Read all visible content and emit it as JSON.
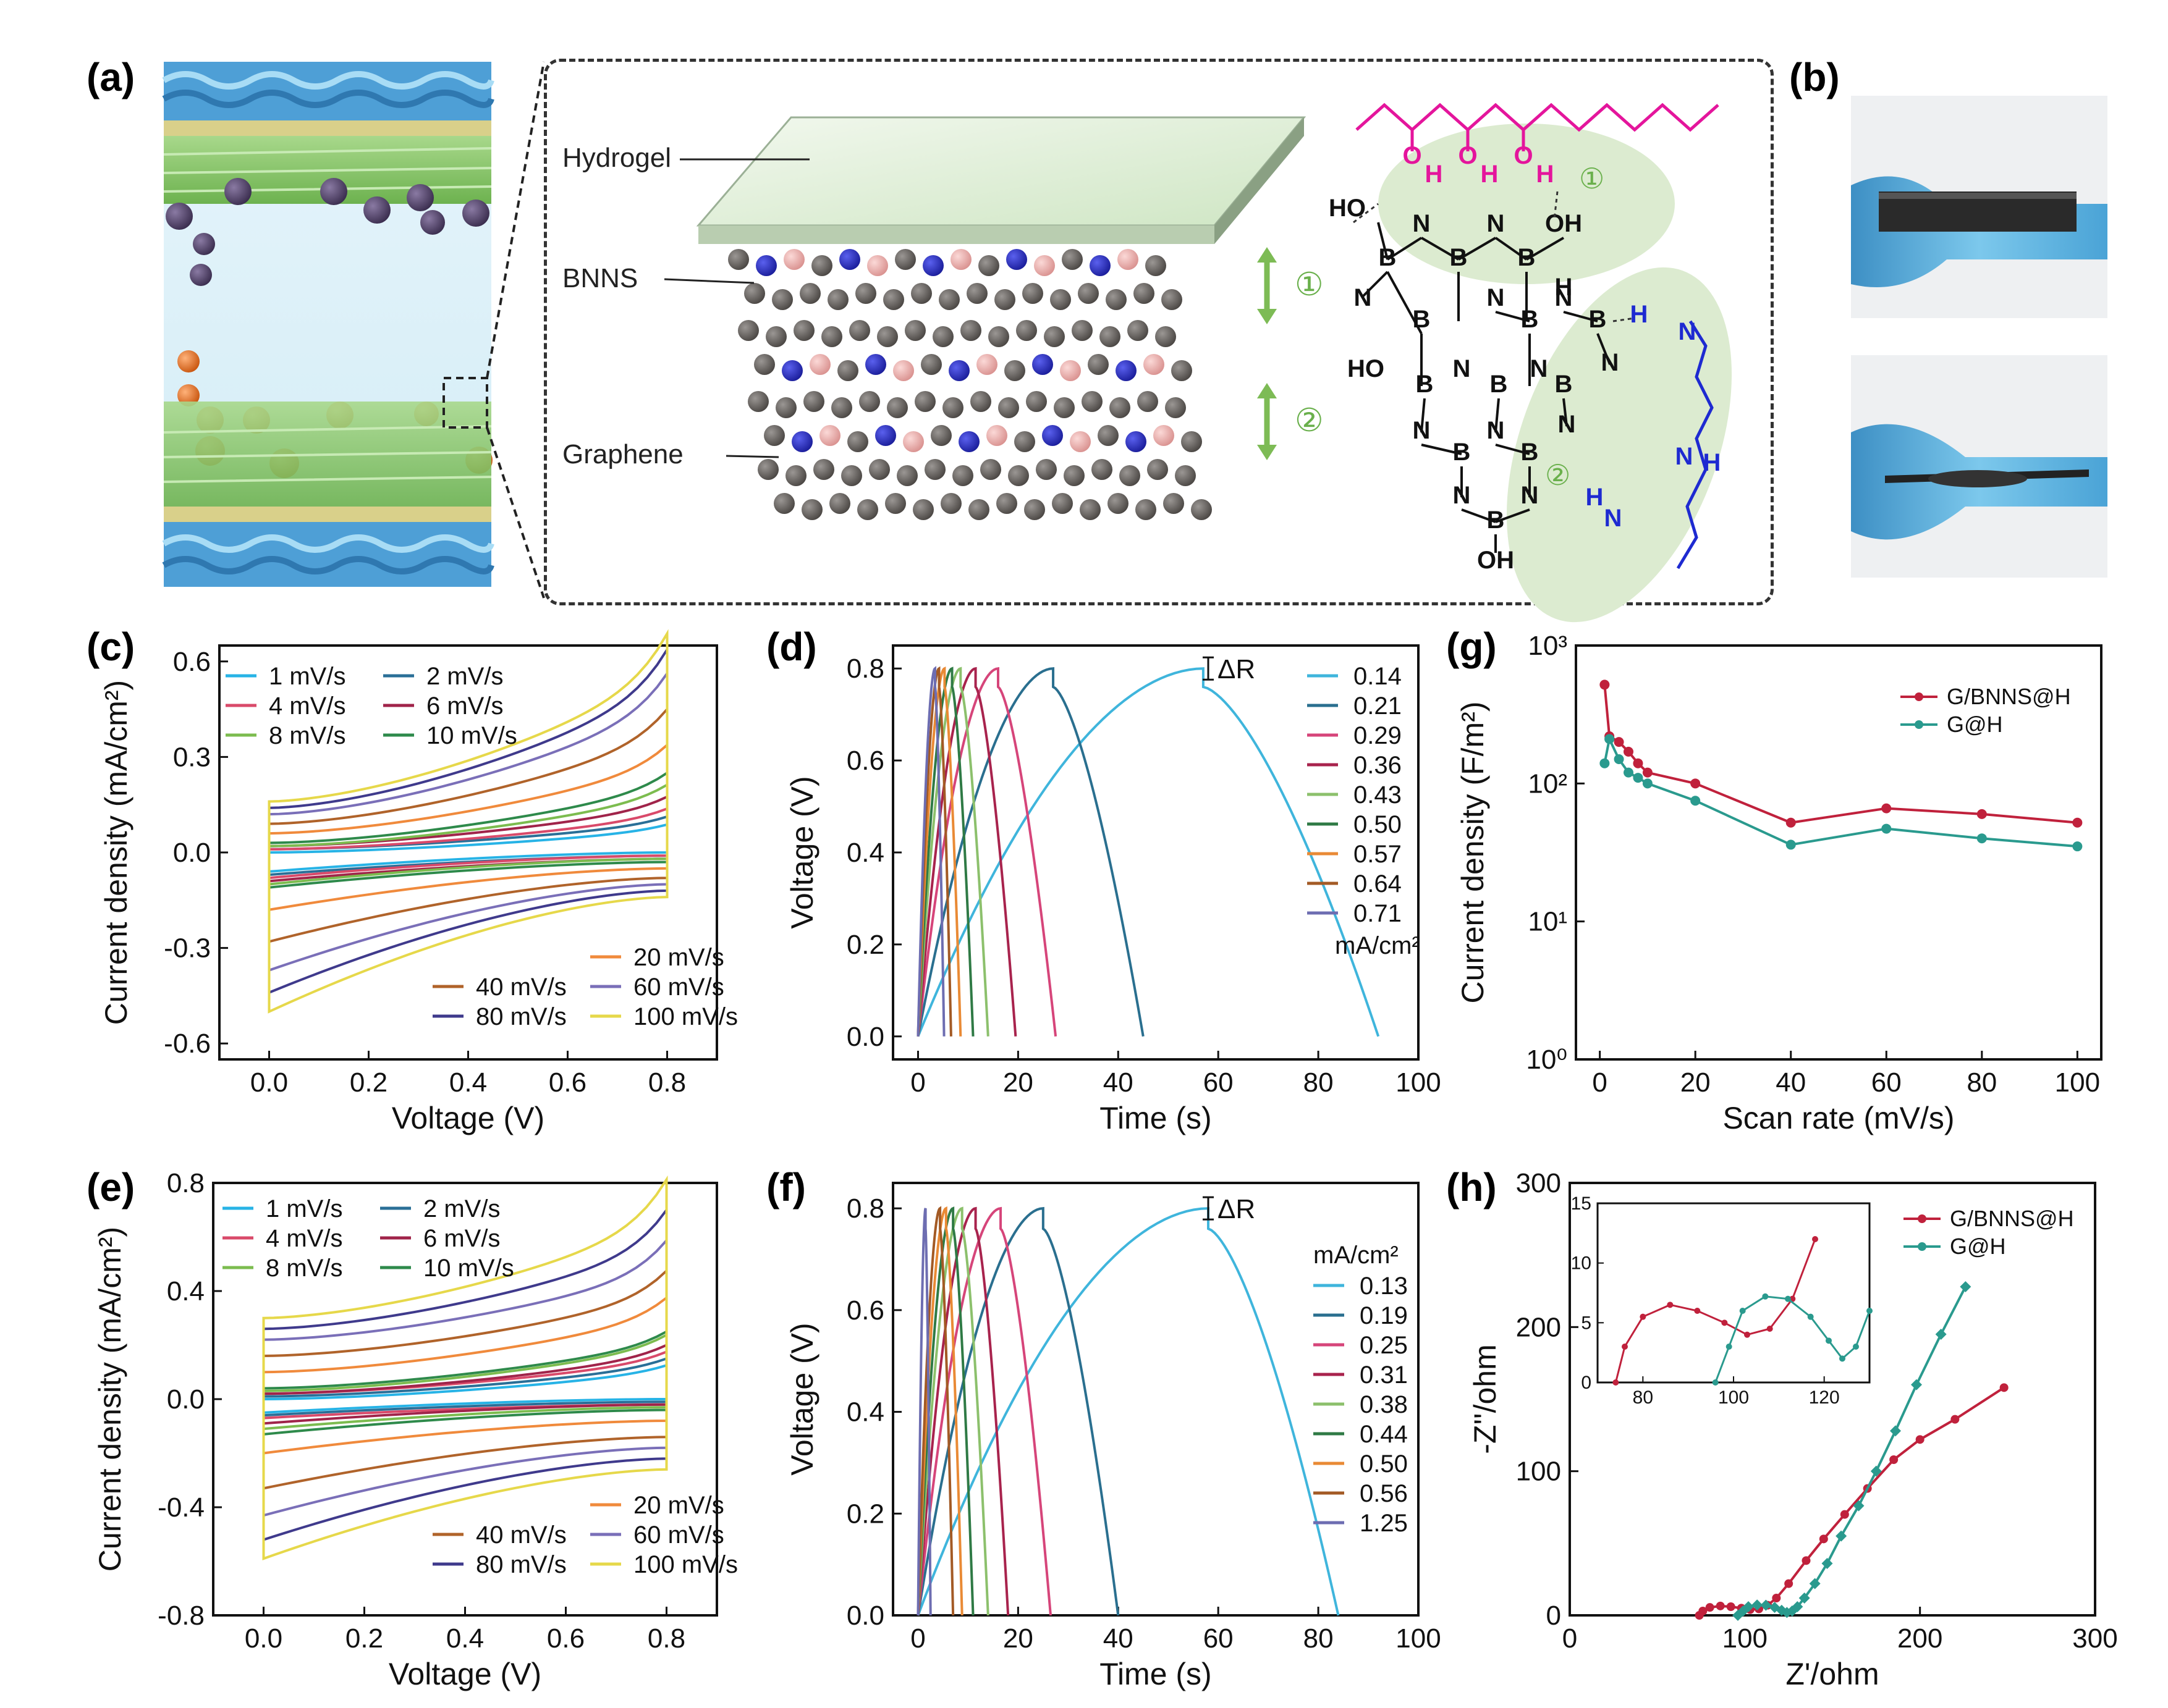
{
  "panels": {
    "a": "(a)",
    "b": "(b)",
    "c": "(c)",
    "d": "(d)",
    "e": "(e)",
    "f": "(f)",
    "g": "(g)",
    "h": "(h)"
  },
  "schematic": {
    "labels": {
      "hydrogel": "Hydrogel",
      "bnns": "BNNS",
      "graphene": "Graphene"
    },
    "markers": {
      "one": "①",
      "two": "②"
    },
    "chem": {
      "O": "O",
      "H": "H",
      "N": "N",
      "B": "B",
      "HO": "HO",
      "OH": "OH"
    }
  },
  "colors": {
    "hydrogel_green": "#dfeed6",
    "graphene_gray": "#5e5a57",
    "bnns_blue": "#2b2fc8",
    "bnns_pink": "#f0b9b7",
    "glove_blue": "#5fb9e4",
    "hydroxyl_magenta": "#e4159c",
    "amine_blue": "#1e2ad1",
    "annotation_green": "#6ab04c"
  },
  "chart_data": [
    {
      "id": "c",
      "type": "line",
      "xlabel": "Voltage (V)",
      "ylabel": "Current density (mA/cm²)",
      "xlim": [
        -0.1,
        0.9
      ],
      "ylim": [
        -0.65,
        0.65
      ],
      "xticks": [
        "0.0",
        "0.2",
        "0.4",
        "0.6",
        "0.8"
      ],
      "yticks": [
        "-0.6",
        "-0.3",
        "0.0",
        "0.3",
        "0.6"
      ],
      "series": [
        {
          "name": "1 mV/s",
          "color": "#27b3e6",
          "upper": [
            0.0,
            0.07
          ],
          "lower": [
            -0.06,
            -0.0
          ]
        },
        {
          "name": "2 mV/s",
          "color": "#2a6f97",
          "upper": [
            0.01,
            0.09
          ],
          "lower": [
            -0.07,
            -0.01
          ]
        },
        {
          "name": "4 mV/s",
          "color": "#d94a6a",
          "upper": [
            0.01,
            0.11
          ],
          "lower": [
            -0.08,
            -0.01
          ]
        },
        {
          "name": "6 mV/s",
          "color": "#a0244a",
          "upper": [
            0.02,
            0.14
          ],
          "lower": [
            -0.09,
            -0.02
          ]
        },
        {
          "name": "8 mV/s",
          "color": "#7cbc4f",
          "upper": [
            0.02,
            0.17
          ],
          "lower": [
            -0.1,
            -0.02
          ]
        },
        {
          "name": "10 mV/s",
          "color": "#2e8a4b",
          "upper": [
            0.03,
            0.2
          ],
          "lower": [
            -0.11,
            -0.03
          ]
        },
        {
          "name": "20 mV/s",
          "color": "#f08a3c",
          "upper": [
            0.06,
            0.27
          ],
          "lower": [
            -0.18,
            -0.05
          ]
        },
        {
          "name": "40 mV/s",
          "color": "#b0632a",
          "upper": [
            0.09,
            0.36
          ],
          "lower": [
            -0.28,
            -0.08
          ]
        },
        {
          "name": "60 mV/s",
          "color": "#7a6fb8",
          "upper": [
            0.12,
            0.45
          ],
          "lower": [
            -0.37,
            -0.1
          ]
        },
        {
          "name": "80 mV/s",
          "color": "#3f3a8c",
          "upper": [
            0.14,
            0.51
          ],
          "lower": [
            -0.44,
            -0.12
          ]
        },
        {
          "name": "100 mV/s",
          "color": "#e6d84a",
          "upper": [
            0.16,
            0.55
          ],
          "lower": [
            -0.5,
            -0.14
          ]
        }
      ]
    },
    {
      "id": "d",
      "type": "line",
      "xlabel": "Time (s)",
      "ylabel": "Voltage (V)",
      "xlim": [
        -5,
        100
      ],
      "ylim": [
        -0.05,
        0.85
      ],
      "xticks": [
        "0",
        "20",
        "40",
        "60",
        "80",
        "100"
      ],
      "yticks": [
        "0.0",
        "0.2",
        "0.4",
        "0.6",
        "0.8"
      ],
      "annotation": "ΔR",
      "unit_label": "mA/cm²",
      "series": [
        {
          "name": "0.14",
          "color": "#3fb5dc",
          "charge_end": 57,
          "discharge_end": 92
        },
        {
          "name": "0.21",
          "color": "#2a6f8f",
          "charge_end": 27,
          "discharge_end": 45
        },
        {
          "name": "0.29",
          "color": "#d6457a",
          "charge_end": 16,
          "discharge_end": 27.5
        },
        {
          "name": "0.36",
          "color": "#a8234d",
          "charge_end": 11.5,
          "discharge_end": 19.5
        },
        {
          "name": "0.43",
          "color": "#8cc06c",
          "charge_end": 8.5,
          "discharge_end": 14
        },
        {
          "name": "0.50",
          "color": "#2f7a45",
          "charge_end": 6.8,
          "discharge_end": 11
        },
        {
          "name": "0.57",
          "color": "#e98a35",
          "charge_end": 5.3,
          "discharge_end": 8.5
        },
        {
          "name": "0.64",
          "color": "#a35a25",
          "charge_end": 4.2,
          "discharge_end": 6.6
        },
        {
          "name": "0.71",
          "color": "#6d6db1",
          "charge_end": 3.4,
          "discharge_end": 5.2
        }
      ]
    },
    {
      "id": "e",
      "type": "line",
      "xlabel": "Voltage (V)",
      "ylabel": "Current density (mA/cm²)",
      "xlim": [
        -0.1,
        0.9
      ],
      "ylim": [
        -0.8,
        0.8
      ],
      "xticks": [
        "0.0",
        "0.2",
        "0.4",
        "0.6",
        "0.8"
      ],
      "yticks": [
        "-0.8",
        "-0.4",
        "0.0",
        "0.4",
        "0.8"
      ],
      "series": [
        {
          "name": "1 mV/s",
          "color": "#27b3e6",
          "upper": [
            0.0,
            0.1
          ],
          "lower": [
            -0.05,
            0.0
          ]
        },
        {
          "name": "2 mV/s",
          "color": "#2a6f97",
          "upper": [
            0.01,
            0.12
          ],
          "lower": [
            -0.06,
            -0.01
          ]
        },
        {
          "name": "4 mV/s",
          "color": "#d94a6a",
          "upper": [
            0.02,
            0.14
          ],
          "lower": [
            -0.07,
            -0.02
          ]
        },
        {
          "name": "6 mV/s",
          "color": "#a0244a",
          "upper": [
            0.02,
            0.16
          ],
          "lower": [
            -0.09,
            -0.02
          ]
        },
        {
          "name": "8 mV/s",
          "color": "#7cbc4f",
          "upper": [
            0.03,
            0.19
          ],
          "lower": [
            -0.11,
            -0.03
          ]
        },
        {
          "name": "10 mV/s",
          "color": "#2e8a4b",
          "upper": [
            0.04,
            0.2
          ],
          "lower": [
            -0.13,
            -0.04
          ]
        },
        {
          "name": "20 mV/s",
          "color": "#f08a3c",
          "upper": [
            0.1,
            0.3
          ],
          "lower": [
            -0.2,
            -0.08
          ]
        },
        {
          "name": "40 mV/s",
          "color": "#b0632a",
          "upper": [
            0.16,
            0.38
          ],
          "lower": [
            -0.33,
            -0.14
          ]
        },
        {
          "name": "60 mV/s",
          "color": "#7a6fb8",
          "upper": [
            0.22,
            0.47
          ],
          "lower": [
            -0.43,
            -0.18
          ]
        },
        {
          "name": "80 mV/s",
          "color": "#3f3a8c",
          "upper": [
            0.26,
            0.56
          ],
          "lower": [
            -0.52,
            -0.22
          ]
        },
        {
          "name": "100 mV/s",
          "color": "#e6d84a",
          "upper": [
            0.3,
            0.65
          ],
          "lower": [
            -0.59,
            -0.26
          ]
        }
      ]
    },
    {
      "id": "f",
      "type": "line",
      "xlabel": "Time (s)",
      "ylabel": "Voltage (V)",
      "xlim": [
        -5,
        100
      ],
      "ylim": [
        0,
        0.85
      ],
      "xticks": [
        "0",
        "20",
        "40",
        "60",
        "80",
        "100"
      ],
      "yticks": [
        "0.0",
        "0.2",
        "0.4",
        "0.6",
        "0.8"
      ],
      "annotation": "ΔR",
      "unit_label": "mA/cm²",
      "series": [
        {
          "name": "0.13",
          "color": "#3fb5dc",
          "charge_end": 58,
          "discharge_end": 84
        },
        {
          "name": "0.19",
          "color": "#2a6f8f",
          "charge_end": 25,
          "discharge_end": 40
        },
        {
          "name": "0.25",
          "color": "#d6457a",
          "charge_end": 16.5,
          "discharge_end": 26.5
        },
        {
          "name": "0.31",
          "color": "#a8234d",
          "charge_end": 11.5,
          "discharge_end": 18
        },
        {
          "name": "0.38",
          "color": "#8cc06c",
          "charge_end": 8.8,
          "discharge_end": 14
        },
        {
          "name": "0.44",
          "color": "#2f7a45",
          "charge_end": 7,
          "discharge_end": 11
        },
        {
          "name": "0.50",
          "color": "#e98a35",
          "charge_end": 5.6,
          "discharge_end": 8.8
        },
        {
          "name": "0.56",
          "color": "#a35a25",
          "charge_end": 4.4,
          "discharge_end": 7
        },
        {
          "name": "1.25",
          "color": "#6d6db1",
          "charge_end": 1.5,
          "discharge_end": 2.5
        }
      ]
    },
    {
      "id": "g",
      "type": "line",
      "xlabel": "Scan rate (mV/s)",
      "ylabel": "Current density (F/m²)",
      "xlim": [
        -5,
        105
      ],
      "ylim": [
        1,
        1000
      ],
      "yscale": "log",
      "xticks": [
        "0",
        "20",
        "40",
        "60",
        "80",
        "100"
      ],
      "yticks": [
        "10⁰",
        "10¹",
        "10²",
        "10³"
      ],
      "legend": "top-right",
      "x": [
        1,
        2,
        4,
        6,
        8,
        10,
        20,
        40,
        60,
        80,
        100
      ],
      "series": [
        {
          "name": "G/BNNS@H",
          "color": "#c0213c",
          "values": [
            520,
            220,
            200,
            170,
            140,
            120,
            100,
            52,
            66,
            60,
            52
          ]
        },
        {
          "name": "G@H",
          "color": "#2a9a8e",
          "values": [
            140,
            210,
            150,
            120,
            110,
            100,
            75,
            36,
            47,
            40,
            35
          ]
        }
      ]
    },
    {
      "id": "h",
      "type": "scatter",
      "xlabel": "Z'/ohm",
      "ylabel": "-Z''/ohm",
      "xlim": [
        0,
        300
      ],
      "ylim": [
        0,
        300
      ],
      "xticks": [
        "0",
        "100",
        "200",
        "300"
      ],
      "yticks": [
        "0",
        "100",
        "200",
        "300"
      ],
      "legend": "top-right",
      "series": [
        {
          "name": "G/BNNS@H",
          "color": "#c0213c",
          "points": [
            [
              74,
              0
            ],
            [
              76,
              3
            ],
            [
              80,
              5.5
            ],
            [
              86,
              6.5
            ],
            [
              92,
              6
            ],
            [
              98,
              5
            ],
            [
              103,
              4
            ],
            [
              108,
              4.5
            ],
            [
              113,
              7
            ],
            [
              118,
              12
            ],
            [
              125,
              22
            ],
            [
              135,
              38
            ],
            [
              145,
              53
            ],
            [
              157,
              70
            ],
            [
              170,
              88
            ],
            [
              185,
              108
            ],
            [
              200,
              122
            ],
            [
              220,
              136
            ],
            [
              248,
              158
            ]
          ]
        },
        {
          "name": "G@H",
          "color": "#2a9a8e",
          "points": [
            [
              96,
              0
            ],
            [
              99,
              3
            ],
            [
              102,
              6
            ],
            [
              107,
              7.2
            ],
            [
              112,
              7
            ],
            [
              117,
              5.5
            ],
            [
              121,
              3.5
            ],
            [
              124,
              2
            ],
            [
              127,
              3
            ],
            [
              130,
              6
            ],
            [
              134,
              12
            ],
            [
              140,
              22
            ],
            [
              147,
              36
            ],
            [
              155,
              55
            ],
            [
              165,
              76
            ],
            [
              175,
              100
            ],
            [
              186,
              128
            ],
            [
              198,
              160
            ],
            [
              212,
              195
            ],
            [
              226,
              228
            ]
          ]
        }
      ],
      "inset": {
        "xlim": [
          70,
          130
        ],
        "ylim": [
          0,
          15
        ],
        "xticks": [
          "80",
          "100",
          "120"
        ],
        "yticks": [
          "0",
          "5",
          "10",
          "15"
        ]
      }
    }
  ]
}
